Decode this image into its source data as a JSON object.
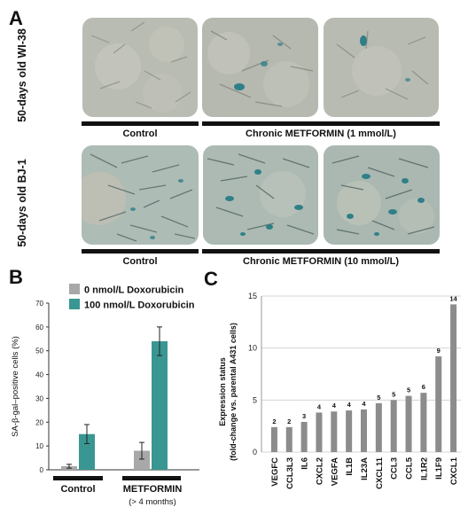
{
  "panel_a": {
    "letter": "A",
    "row1_label": "50-days old WI-38",
    "row2_label": "50-days old BJ-1",
    "row1_control": "Control",
    "row1_treatment": "Chronic METFORMIN (1 mmol/L)",
    "row2_control": "Control",
    "row2_treatment": "Chronic METFORMIN (10 mmol/L)",
    "colors": {
      "wi38_background": "#b9bcb2",
      "bj1_background": "#aebcb6",
      "stain": "#2f7f88"
    }
  },
  "panel_b": {
    "letter": "B",
    "legend": [
      {
        "label": "0 nmol/L Doxorubicin",
        "color": "#a8a8a8"
      },
      {
        "label": "100 nmol/L Doxorubicin",
        "color": "#3a9693"
      }
    ],
    "group_labels": [
      "Control",
      "METFORMIN",
      "(> 4 months)"
    ]
  },
  "panel_c": {
    "letter": "C"
  },
  "chart_data": [
    {
      "type": "bar",
      "ylabel": "SA-β-gal–positive cells (%)",
      "ylim": [
        0,
        70
      ],
      "yticks": [
        0,
        10,
        20,
        30,
        40,
        50,
        60,
        70
      ],
      "categories": [
        "Control",
        "METFORMIN (> 4 months)"
      ],
      "series": [
        {
          "name": "0 nmol/L Doxorubicin",
          "values": [
            1.5,
            8
          ],
          "errors": [
            0.8,
            3.5
          ],
          "color": "#a8a8a8"
        },
        {
          "name": "100 nmol/L Doxorubicin",
          "values": [
            15,
            54
          ],
          "errors": [
            4,
            6
          ],
          "color": "#3a9693"
        }
      ],
      "legend": "top-left"
    },
    {
      "type": "bar",
      "ylabel": "Expression status (fold-change vs. parental A431 cells)",
      "ylim": [
        0,
        15
      ],
      "yticks": [
        0,
        5,
        10,
        15
      ],
      "grid": true,
      "categories": [
        "VEGFC",
        "CCL3L3",
        "IL6",
        "CXCL2",
        "VEGFA",
        "IL1B",
        "IL23A",
        "CXCL11",
        "CCL3",
        "CCL5",
        "IL1R2",
        "IL1F9",
        "CXCL1"
      ],
      "values": [
        2.4,
        2.4,
        2.9,
        3.8,
        3.9,
        4.0,
        4.1,
        4.7,
        5.0,
        5.4,
        5.7,
        9.2,
        14.2
      ],
      "value_labels": [
        "2",
        "2",
        "3",
        "4",
        "4",
        "4",
        "4",
        "5",
        "5",
        "5",
        "6",
        "9",
        "14"
      ],
      "color": "#8c8c8c"
    }
  ]
}
